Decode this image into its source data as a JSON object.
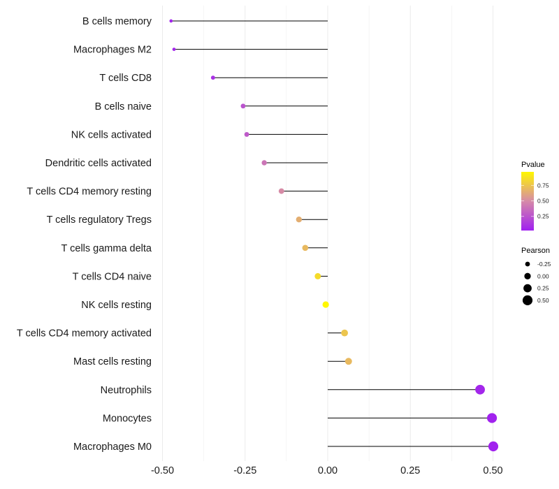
{
  "chart_data": {
    "type": "lollipop",
    "title": "",
    "xlabel": "",
    "ylabel": "",
    "xlim": [
      -0.52,
      0.55
    ],
    "x_ticks": [
      -0.5,
      -0.25,
      0.0,
      0.25,
      0.5
    ],
    "x_tick_labels": [
      "-0.50",
      "-0.25",
      "0.00",
      "0.25",
      "0.50"
    ],
    "grid": true,
    "categories": [
      "B cells memory",
      "Macrophages M2",
      "T cells CD8",
      "B cells naive",
      "NK cells activated",
      "Dendritic cells activated",
      "T cells CD4 memory resting",
      "T cells regulatory  Tregs",
      "T cells gamma delta",
      "T cells CD4 naive",
      "NK cells resting",
      "T cells CD4 memory activated",
      "Mast cells resting",
      "Neutrophils",
      "Monocytes",
      "Macrophages M0"
    ],
    "pearson": [
      -0.474,
      -0.465,
      -0.347,
      -0.256,
      -0.245,
      -0.192,
      -0.14,
      -0.087,
      -0.068,
      -0.03,
      -0.006,
      0.051,
      0.063,
      0.461,
      0.497,
      0.501
    ],
    "pvalue": [
      0.04,
      0.05,
      0.1,
      0.25,
      0.28,
      0.4,
      0.5,
      0.65,
      0.7,
      0.85,
      0.97,
      0.75,
      0.7,
      0.05,
      0.03,
      0.03
    ],
    "color_legend": {
      "title": "Pvalue",
      "range": [
        0.02,
        0.97
      ],
      "ticks": [
        0.25,
        0.5,
        0.75
      ],
      "tick_labels": [
        "0.25",
        "0.50",
        "0.75"
      ],
      "low_color": "#a020f0",
      "mid_color": "#d68aa8",
      "high_color": "#fff700"
    },
    "size_legend": {
      "title": "Pearson",
      "values": [
        -0.25,
        0.0,
        0.25,
        0.5
      ],
      "labels": [
        "-0.25",
        "0.00",
        "0.25",
        "0.50"
      ]
    }
  }
}
